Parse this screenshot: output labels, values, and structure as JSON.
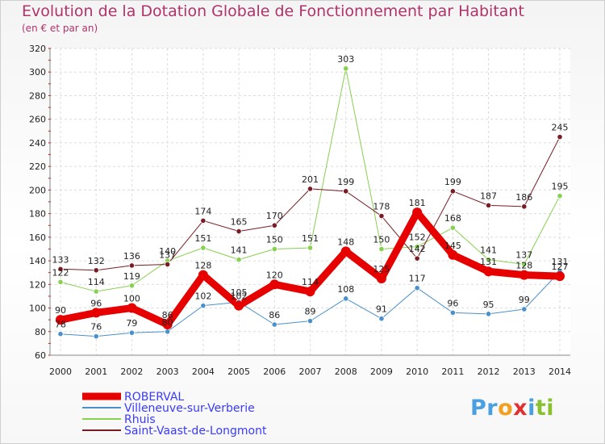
{
  "chart_data": {
    "type": "line",
    "title": "Evolution de la Dotation Globale de Fonctionnement par Habitant",
    "subtitle": "(en € et par an)",
    "x": [
      "2000",
      "2001",
      "2002",
      "2003",
      "2004",
      "2005",
      "2006",
      "2007",
      "2008",
      "2009",
      "2010",
      "2011",
      "2012",
      "2013",
      "2014"
    ],
    "ylim": [
      60,
      320
    ],
    "yticks": [
      60,
      80,
      100,
      120,
      140,
      160,
      180,
      200,
      220,
      240,
      260,
      280,
      300,
      320
    ],
    "grid": true,
    "legend_position": "bottom-left",
    "series": [
      {
        "name": "ROBERVAL",
        "color": "#e60000",
        "width": 9,
        "values": [
          90,
          96,
          100,
          86,
          128,
          102,
          120,
          114,
          148,
          125,
          181,
          145,
          131,
          128,
          127
        ]
      },
      {
        "name": "Villeneuve-sur-Verberie",
        "color": "#4a90cc",
        "width": 1,
        "values": [
          78,
          76,
          79,
          80,
          102,
          105,
          86,
          89,
          108,
          91,
          117,
          96,
          95,
          99,
          131
        ]
      },
      {
        "name": "Rhuis",
        "color": "#88d050",
        "width": 1,
        "values": [
          122,
          114,
          119,
          140,
          151,
          141,
          150,
          151,
          303,
          150,
          152,
          168,
          141,
          137,
          195
        ]
      },
      {
        "name": "Saint-Vaast-de-Longmont",
        "color": "#7a1c24",
        "width": 1,
        "values": [
          133,
          132,
          136,
          137,
          174,
          165,
          170,
          201,
          199,
          178,
          142,
          199,
          187,
          186,
          245
        ]
      }
    ]
  },
  "logo": {
    "parts": [
      "Pr",
      "o",
      "x",
      "i",
      "ti"
    ],
    "colors": [
      "#4a9fe0",
      "#f2a020",
      "#e03030",
      "#4a9fe0",
      "#88c030"
    ]
  }
}
